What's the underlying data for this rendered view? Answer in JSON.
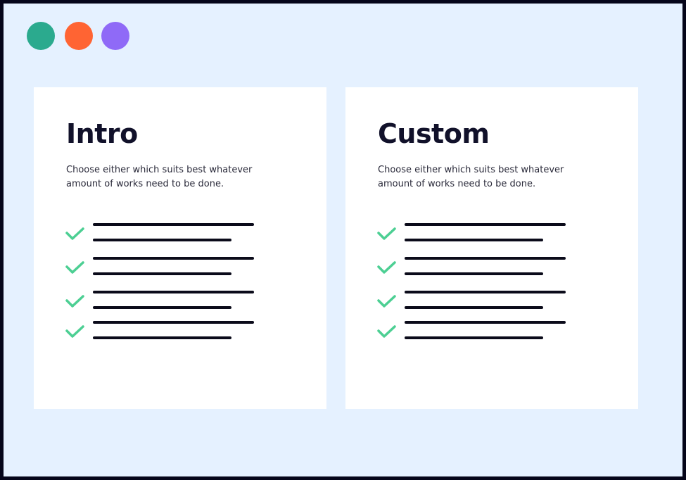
{
  "window_controls": [
    {
      "name": "green",
      "color": "#2baa8e"
    },
    {
      "name": "orange",
      "color": "#ff6433"
    },
    {
      "name": "purple",
      "color": "#8f6af7"
    }
  ],
  "check_color": "#4ccf93",
  "cards": [
    {
      "title": "Intro",
      "description": "Choose either which suits best whatever amount of works need to be done.",
      "items": 4
    },
    {
      "title": "Custom",
      "description": "Choose either which suits best whatever amount of works need to be done.",
      "items": 4
    }
  ]
}
